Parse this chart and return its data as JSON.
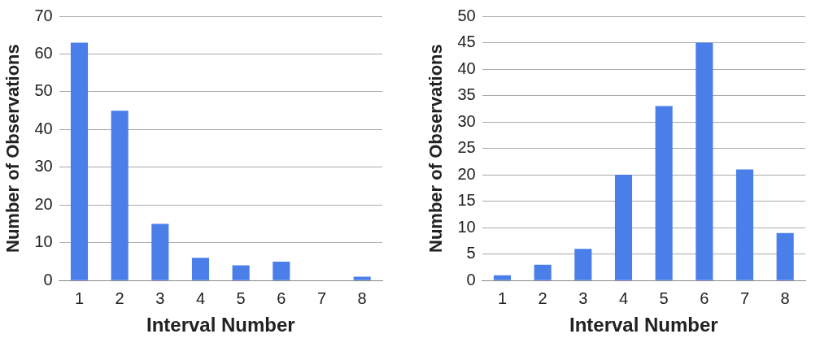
{
  "chart_data": [
    {
      "type": "bar",
      "xlabel": "Interval Number",
      "ylabel": "Number of Observations",
      "categories": [
        "1",
        "2",
        "3",
        "4",
        "5",
        "6",
        "7",
        "8"
      ],
      "values": [
        63,
        45,
        15,
        6,
        4,
        5,
        0,
        1
      ],
      "color": "#4a7ee8",
      "ylim": [
        0,
        70
      ],
      "yticks": [
        0,
        10,
        20,
        30,
        40,
        50,
        60,
        70
      ],
      "grid": "y"
    },
    {
      "type": "bar",
      "xlabel": "Interval Number",
      "ylabel": "Number of Observations",
      "categories": [
        "1",
        "2",
        "3",
        "4",
        "5",
        "6",
        "7",
        "8"
      ],
      "values": [
        1,
        3,
        6,
        20,
        33,
        45,
        21,
        9
      ],
      "color": "#4a7ee8",
      "ylim": [
        0,
        50
      ],
      "yticks": [
        0,
        5,
        10,
        15,
        20,
        25,
        30,
        35,
        40,
        45,
        50
      ],
      "grid": "y"
    }
  ]
}
